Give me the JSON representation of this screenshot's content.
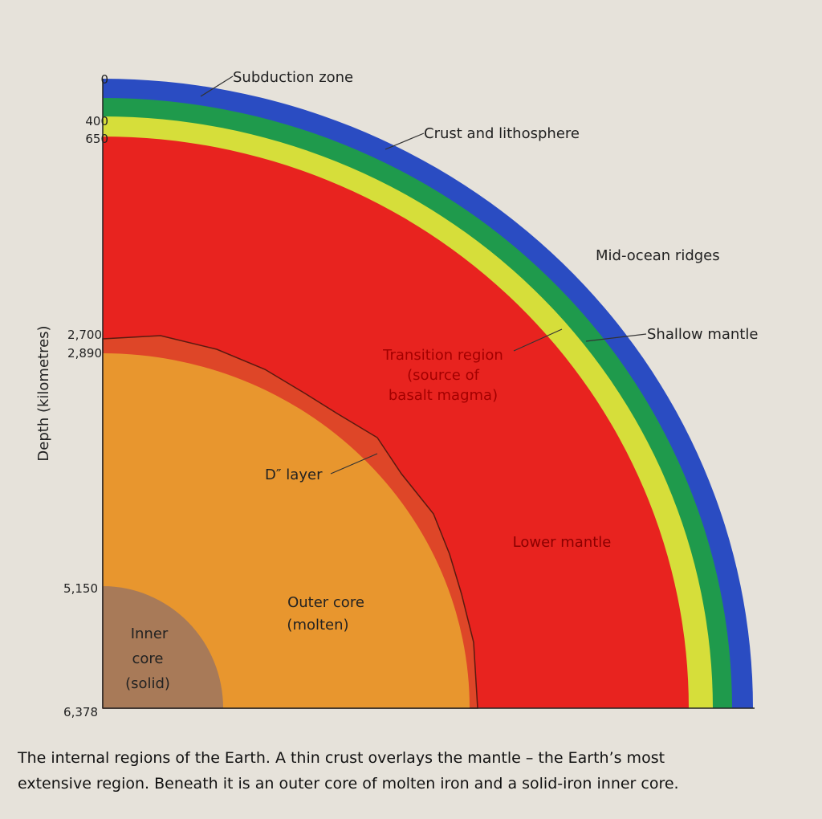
{
  "axis_label": "Depth (kilometres)",
  "depth_ticks": [
    "0",
    "400",
    "650",
    "2,700",
    "2,890",
    "5,150",
    "6,378"
  ],
  "labels": {
    "subduction_zone": "Subduction zone",
    "crust_and_lithosphere": "Crust and lithosphere",
    "mid_ocean_ridges": "Mid-ocean ridges",
    "shallow_mantle": "Shallow mantle",
    "transition_region": [
      "Transition region",
      "(source of",
      "basalt magma)"
    ],
    "d_layer": "D″ layer",
    "lower_mantle": "Lower mantle",
    "outer_core": [
      "Outer core",
      "(molten)"
    ],
    "inner_core": [
      "Inner",
      "core",
      "(solid)"
    ]
  },
  "caption": [
    "The internal regions of the Earth. A thin crust overlays the mantle – the Earth’s most",
    "extensive region. Beneath it is an outer core of molten iron and a solid-iron inner core."
  ]
}
